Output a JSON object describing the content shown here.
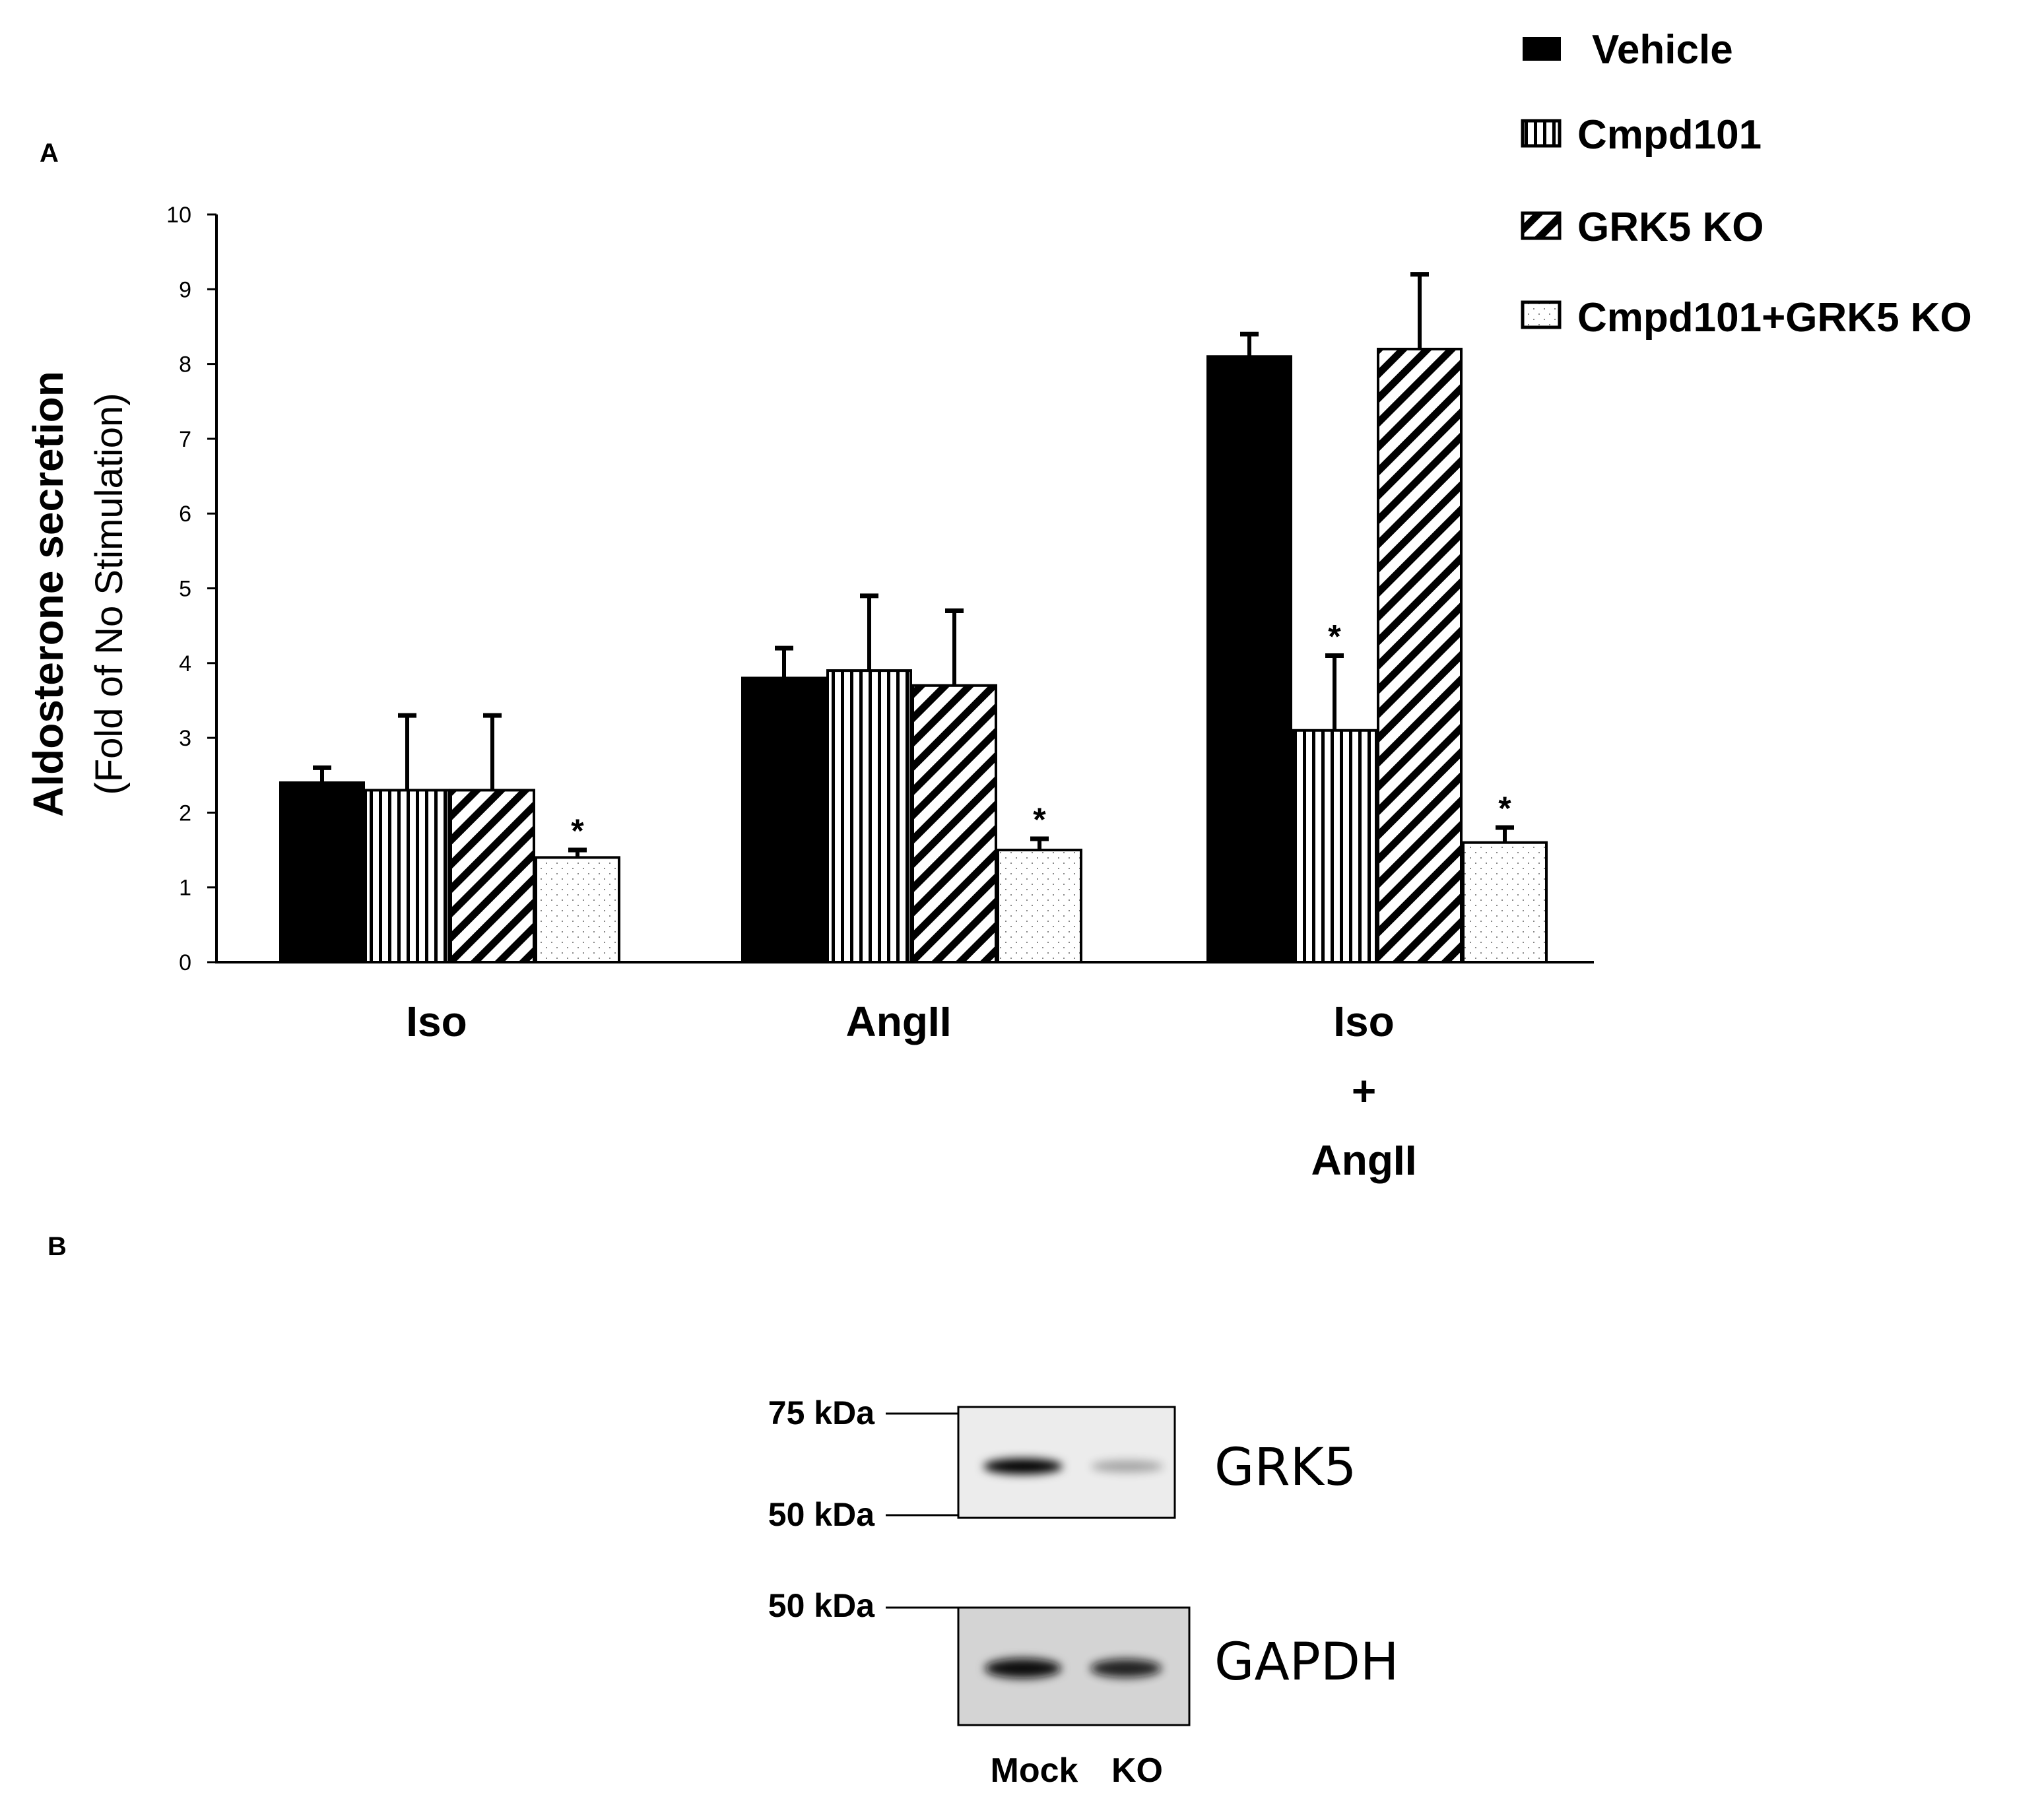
{
  "chart_data": {
    "type": "bar",
    "panel": "A",
    "ylabel": "Aldosterone secretion",
    "ylabel_sub": "(Fold of No Stimulation)",
    "ylim": [
      0,
      10
    ],
    "yticks": [
      "0",
      "1",
      "2",
      "3",
      "4",
      "5",
      "6",
      "7",
      "8",
      "9",
      "10"
    ],
    "categories": [
      [
        "Iso"
      ],
      [
        "AngII"
      ],
      [
        "Iso",
        "+",
        "AngII"
      ]
    ],
    "legend_position": "top-right",
    "series": [
      {
        "name": "Vehicle",
        "pattern": "solid",
        "values": [
          2.4,
          3.8,
          8.1
        ],
        "errors": [
          0.2,
          0.4,
          0.3
        ],
        "significant": [
          false,
          false,
          false
        ]
      },
      {
        "name": "Cmpd101",
        "pattern": "vertical-lines",
        "values": [
          2.3,
          3.9,
          3.1
        ],
        "errors": [
          1.0,
          1.0,
          1.0
        ],
        "significant": [
          false,
          false,
          true
        ]
      },
      {
        "name": "GRK5 KO",
        "pattern": "diagonal-lines",
        "values": [
          2.3,
          3.7,
          8.2
        ],
        "errors": [
          1.0,
          1.0,
          1.0
        ],
        "significant": [
          false,
          false,
          false
        ]
      },
      {
        "name": "Cmpd101+GRK5 KO",
        "pattern": "dots",
        "values": [
          1.4,
          1.5,
          1.6
        ],
        "errors": [
          0.1,
          0.15,
          0.2
        ],
        "significant": [
          true,
          true,
          true
        ]
      }
    ],
    "significance_marker": "*"
  },
  "blot": {
    "panel": "B",
    "lanes": [
      "Mock",
      "KO"
    ],
    "strips": [
      {
        "protein": "GRK5",
        "markers": [
          "75 kDa",
          "50 kDa"
        ],
        "band_intensity": [
          0.9,
          0.15
        ]
      },
      {
        "protein": "GAPDH",
        "markers": [
          "50 kDa"
        ],
        "band_intensity": [
          0.85,
          0.8
        ]
      }
    ]
  },
  "colors": {
    "ink": "#000000",
    "bar_fill": "#ffffff",
    "blot_bg": "#e6e6e6",
    "blot_bg2": "#d2d2d2"
  }
}
